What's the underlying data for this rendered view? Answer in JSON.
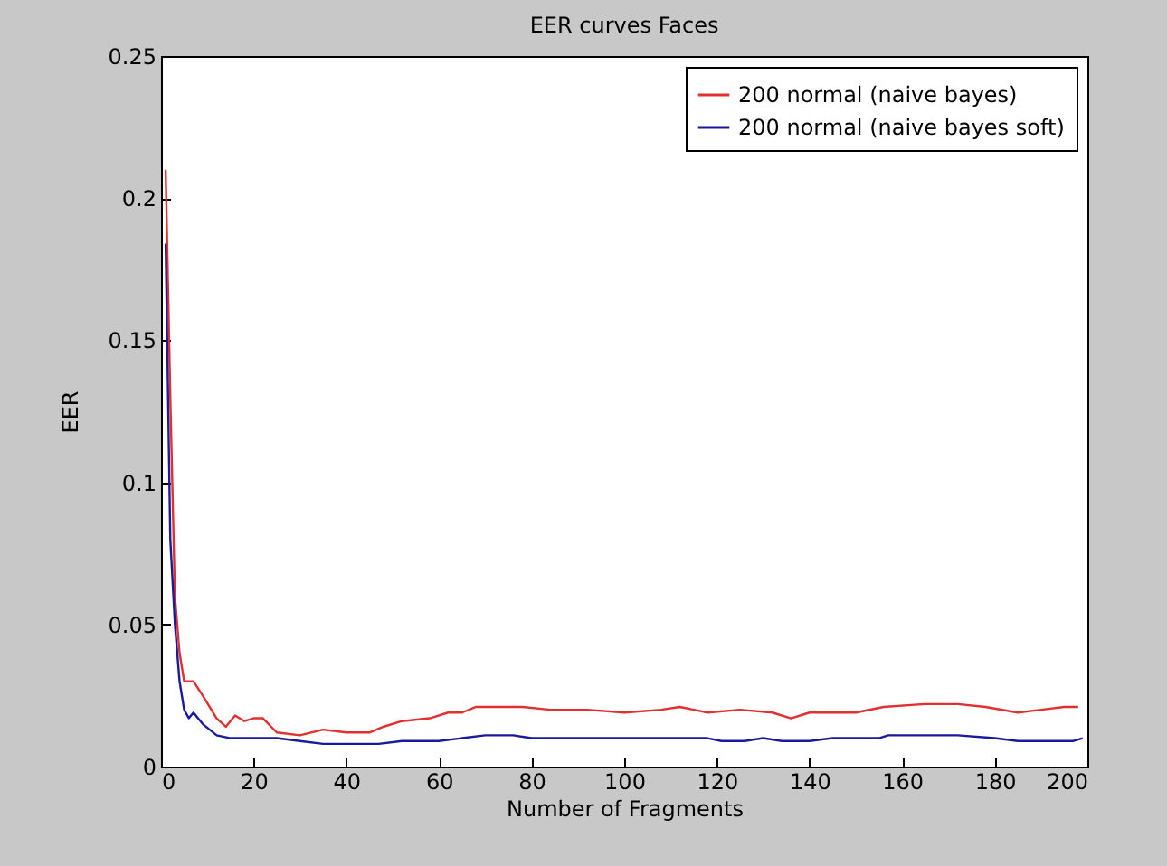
{
  "chart_data": {
    "type": "line",
    "title": "EER curves Faces",
    "xlabel": "Number of Fragments",
    "ylabel": "EER",
    "xlim": [
      0,
      200
    ],
    "xticks": [
      0,
      20,
      40,
      60,
      80,
      100,
      120,
      140,
      160,
      180,
      200
    ],
    "ylim": [
      0,
      0.25
    ],
    "yticks": [
      0,
      0.05,
      0.1,
      0.15,
      0.2,
      0.25
    ],
    "grid": false,
    "legend": "top right",
    "series": [
      {
        "name": "200 normal (naive bayes)",
        "color": "#e03030",
        "x": [
          1,
          2,
          3,
          4,
          5,
          7,
          9,
          12,
          14,
          16,
          18,
          20,
          22,
          25,
          30,
          35,
          40,
          45,
          48,
          52,
          58,
          62,
          65,
          68,
          72,
          78,
          84,
          92,
          100,
          108,
          112,
          118,
          125,
          132,
          136,
          140,
          150,
          156,
          165,
          172,
          178,
          185,
          190,
          195,
          198
        ],
        "values": [
          0.21,
          0.13,
          0.06,
          0.04,
          0.03,
          0.03,
          0.025,
          0.017,
          0.014,
          0.018,
          0.016,
          0.017,
          0.017,
          0.012,
          0.011,
          0.013,
          0.012,
          0.012,
          0.014,
          0.016,
          0.017,
          0.019,
          0.019,
          0.021,
          0.021,
          0.021,
          0.02,
          0.02,
          0.019,
          0.02,
          0.021,
          0.019,
          0.02,
          0.019,
          0.017,
          0.019,
          0.019,
          0.021,
          0.022,
          0.022,
          0.021,
          0.019,
          0.02,
          0.021,
          0.021
        ]
      },
      {
        "name": "200 normal (naive bayes soft)",
        "color": "#1a1a9a",
        "x": [
          1,
          2,
          3,
          4,
          5,
          6,
          7,
          9,
          12,
          15,
          20,
          25,
          30,
          35,
          40,
          47,
          52,
          60,
          65,
          70,
          76,
          80,
          100,
          118,
          121,
          126,
          130,
          134,
          140,
          145,
          155,
          157,
          172,
          180,
          185,
          197,
          199
        ],
        "values": [
          0.184,
          0.08,
          0.05,
          0.03,
          0.02,
          0.017,
          0.019,
          0.015,
          0.011,
          0.01,
          0.01,
          0.01,
          0.009,
          0.008,
          0.008,
          0.008,
          0.009,
          0.009,
          0.01,
          0.011,
          0.011,
          0.01,
          0.01,
          0.01,
          0.009,
          0.009,
          0.01,
          0.009,
          0.009,
          0.01,
          0.01,
          0.011,
          0.011,
          0.01,
          0.009,
          0.009,
          0.01
        ]
      }
    ]
  }
}
